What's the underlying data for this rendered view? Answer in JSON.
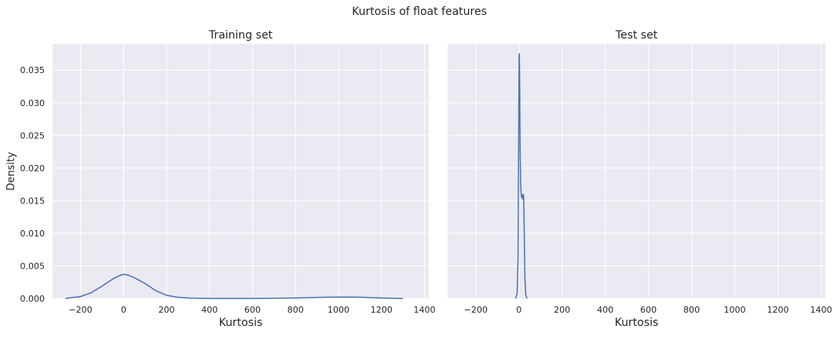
{
  "suptitle": "Kurtosis of float features",
  "chart_data": [
    {
      "type": "line",
      "title": "Training set",
      "xlabel": "Kurtosis",
      "ylabel": "Density",
      "xlim": [
        -330,
        1420
      ],
      "ylim": [
        0,
        0.039
      ],
      "x_ticks": [
        -200,
        0,
        200,
        400,
        600,
        800,
        1000,
        1200,
        1400
      ],
      "x_tick_labels": [
        "−200",
        "0",
        "200",
        "400",
        "600",
        "800",
        "1000",
        "1200",
        "1400"
      ],
      "y_ticks": [
        0,
        0.005,
        0.01,
        0.015,
        0.02,
        0.025,
        0.03,
        0.035
      ],
      "y_tick_labels": [
        "0.000",
        "0.005",
        "0.010",
        "0.015",
        "0.020",
        "0.025",
        "0.030",
        "0.035"
      ],
      "grid": true,
      "series": [
        {
          "color": "#4c72b0",
          "x": [
            -270,
            -200,
            -150,
            -100,
            -50,
            -20,
            0,
            20,
            50,
            100,
            150,
            200,
            250,
            300,
            350,
            400,
            500,
            600,
            700,
            800,
            900,
            1000,
            1050,
            1100,
            1200,
            1300
          ],
          "y": [
            2e-05,
            0.0003,
            0.0009,
            0.0019,
            0.003,
            0.0035,
            0.0037,
            0.0036,
            0.0032,
            0.0023,
            0.0012,
            0.0005,
            0.0002,
            8e-05,
            3e-05,
            2e-05,
            1e-05,
            2e-05,
            4e-05,
            8e-05,
            0.00016,
            0.00022,
            0.00023,
            0.0002,
            8e-05,
            1e-05
          ]
        }
      ]
    },
    {
      "type": "line",
      "title": "Test set",
      "xlabel": "Kurtosis",
      "ylabel": "",
      "xlim": [
        -330,
        1420
      ],
      "ylim": [
        0,
        0.039
      ],
      "x_ticks": [
        -200,
        0,
        200,
        400,
        600,
        800,
        1000,
        1200,
        1400
      ],
      "x_tick_labels": [
        "−200",
        "0",
        "200",
        "400",
        "600",
        "800",
        "1000",
        "1200",
        "1400"
      ],
      "y_ticks": [
        0,
        0.005,
        0.01,
        0.015,
        0.02,
        0.025,
        0.03,
        0.035
      ],
      "grid": true,
      "series": [
        {
          "color": "#4c72b0",
          "x": [
            -15,
            -8,
            -4,
            -2,
            0,
            1,
            2,
            3,
            4,
            5,
            6,
            8,
            10,
            12,
            15,
            18,
            20,
            22,
            24,
            26,
            28,
            32,
            38
          ],
          "y": [
            0.0,
            0.0008,
            0.006,
            0.018,
            0.032,
            0.0372,
            0.0375,
            0.035,
            0.031,
            0.026,
            0.022,
            0.018,
            0.0162,
            0.0155,
            0.0158,
            0.0152,
            0.016,
            0.0155,
            0.012,
            0.007,
            0.003,
            0.0005,
            0.0
          ]
        }
      ]
    }
  ]
}
